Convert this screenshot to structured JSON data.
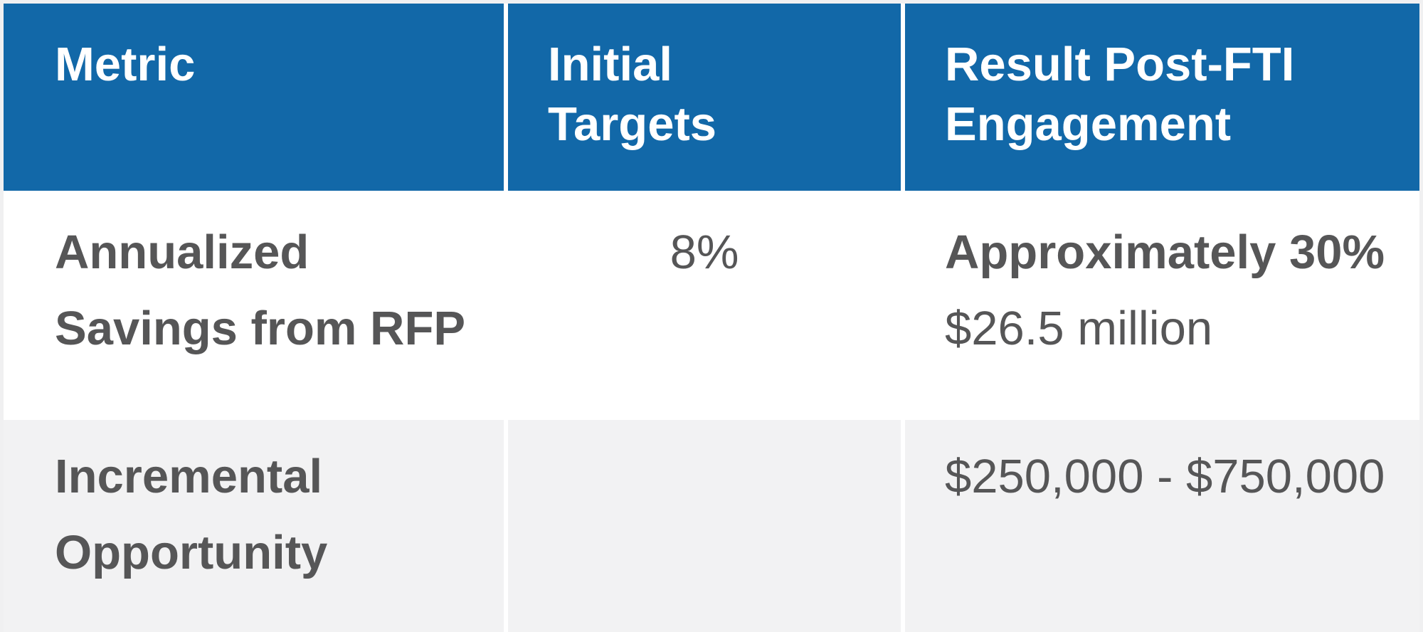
{
  "table": {
    "header": {
      "metric": "Metric",
      "initial_targets": "Initial\nTargets",
      "result": "Result Post-FTI\nEngagement"
    },
    "rows": [
      {
        "metric": "Annualized\nSavings from RFP",
        "initial_target": "8%",
        "result_primary": "Approximately 30%",
        "result_secondary": "$26.5 million"
      },
      {
        "metric": "Incremental\nOpportunity",
        "initial_target": "",
        "result_primary": "",
        "result_secondary": "$250,000 - $750,000"
      }
    ]
  },
  "chart_data": {
    "type": "table",
    "columns": [
      "Metric",
      "Initial Targets",
      "Result Post-FTI Engagement"
    ],
    "rows": [
      [
        "Annualized Savings from RFP",
        "8%",
        "Approximately 30% / $26.5 million"
      ],
      [
        "Incremental Opportunity",
        "",
        "$250,000 - $750,000"
      ]
    ]
  },
  "colors": {
    "header_bg": "#1268A8",
    "header_text": "#FFFFFF",
    "body_text": "#565657",
    "alt_row_bg": "#F2F2F3",
    "divider": "#FFFFFF",
    "frame_bg": "#F0F0F1"
  }
}
